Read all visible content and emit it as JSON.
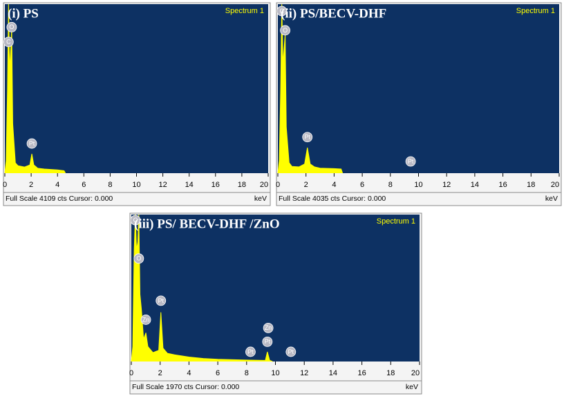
{
  "chart_data": [
    {
      "type": "area",
      "title": "(i) PS",
      "spectrum_label": "Spectrum 1",
      "x_label": "keV",
      "footer": "Full Scale 4109 cts Cursor: 0.000",
      "color": "#ffff00",
      "plot_background": "#0d3163",
      "x": [
        0,
        0.1,
        0.2,
        0.28,
        0.36,
        0.45,
        0.52,
        0.6,
        0.8,
        1.0,
        1.5,
        1.9,
        2.05,
        2.2,
        2.5,
        3,
        4,
        4.5,
        4.6
      ],
      "values": [
        0,
        300,
        2000,
        4109,
        2500,
        3000,
        3550,
        1200,
        250,
        180,
        150,
        200,
        470,
        200,
        120,
        100,
        80,
        60,
        0
      ],
      "xlim": [
        0,
        20
      ],
      "xticks": [
        0,
        2,
        4,
        6,
        8,
        10,
        12,
        14,
        16,
        18,
        20
      ],
      "ylim": [
        0,
        4109
      ],
      "annotations": [
        {
          "label": "C",
          "x": 0.28,
          "y": 3190
        },
        {
          "label": "O",
          "x": 0.52,
          "y": 3550
        },
        {
          "label": "Pt",
          "x": 2.05,
          "y": 720
        }
      ]
    },
    {
      "type": "area",
      "title": "(ii) PS/BECV-DHF",
      "spectrum_label": "Spectrum 1",
      "x_label": "keV",
      "footer": "Full Scale 4035 cts Cursor: 0.000",
      "color": "#ffff00",
      "plot_background": "#0d3163",
      "x": [
        0,
        0.1,
        0.2,
        0.28,
        0.36,
        0.45,
        0.52,
        0.6,
        0.8,
        1.0,
        1.5,
        1.9,
        2.1,
        2.3,
        2.6,
        3,
        4,
        4.5,
        4.6
      ],
      "values": [
        0,
        300,
        2000,
        4035,
        2600,
        3000,
        3300,
        1100,
        250,
        160,
        150,
        220,
        610,
        220,
        150,
        120,
        110,
        100,
        0
      ],
      "xlim": [
        0,
        20
      ],
      "xticks": [
        0,
        2,
        4,
        6,
        8,
        10,
        12,
        14,
        16,
        18,
        20
      ],
      "ylim": [
        0,
        4035
      ],
      "annotations": [
        {
          "label": "C",
          "x": 0.28,
          "y": 3870
        },
        {
          "label": "O",
          "x": 0.52,
          "y": 3410
        },
        {
          "label": "Pt",
          "x": 2.1,
          "y": 860
        },
        {
          "label": "Pt",
          "x": 9.44,
          "y": 280
        }
      ]
    },
    {
      "type": "area",
      "title": "(iii) PS/ BECV-DHF /ZnO",
      "spectrum_label": "Spectrum 1",
      "x_label": "keV",
      "footer": "Full Scale 1970 cts Cursor: 0.000",
      "color": "#ffff00",
      "plot_background": "#0d3163",
      "x": [
        0,
        0.1,
        0.2,
        0.28,
        0.36,
        0.45,
        0.52,
        0.6,
        0.7,
        0.85,
        1.01,
        1.15,
        1.5,
        1.9,
        2.05,
        2.2,
        2.5,
        3,
        4,
        5,
        6,
        8,
        9.3,
        9.44,
        9.6,
        9.8
      ],
      "values": [
        0,
        200,
        1500,
        1970,
        1500,
        1600,
        1970,
        900,
        700,
        300,
        385,
        200,
        120,
        150,
        660,
        180,
        110,
        90,
        60,
        40,
        30,
        20,
        15,
        130,
        15,
        0
      ],
      "xlim": [
        0,
        20
      ],
      "xticks": [
        0,
        2,
        4,
        6,
        8,
        10,
        12,
        14,
        16,
        18,
        20
      ],
      "ylim": [
        0,
        1970
      ],
      "annotations": [
        {
          "label": "C",
          "x": 0.28,
          "y": 1895
        },
        {
          "label": "O",
          "x": 0.52,
          "y": 1380
        },
        {
          "label": "Zn",
          "x": 1.01,
          "y": 560
        },
        {
          "label": "Pt",
          "x": 2.05,
          "y": 815
        },
        {
          "label": "Pt",
          "x": 8.27,
          "y": 130
        },
        {
          "label": "Pt",
          "x": 9.44,
          "y": 265
        },
        {
          "label": "Zn",
          "x": 9.5,
          "y": 450
        },
        {
          "label": "Pt",
          "x": 11.07,
          "y": 130
        }
      ]
    }
  ]
}
